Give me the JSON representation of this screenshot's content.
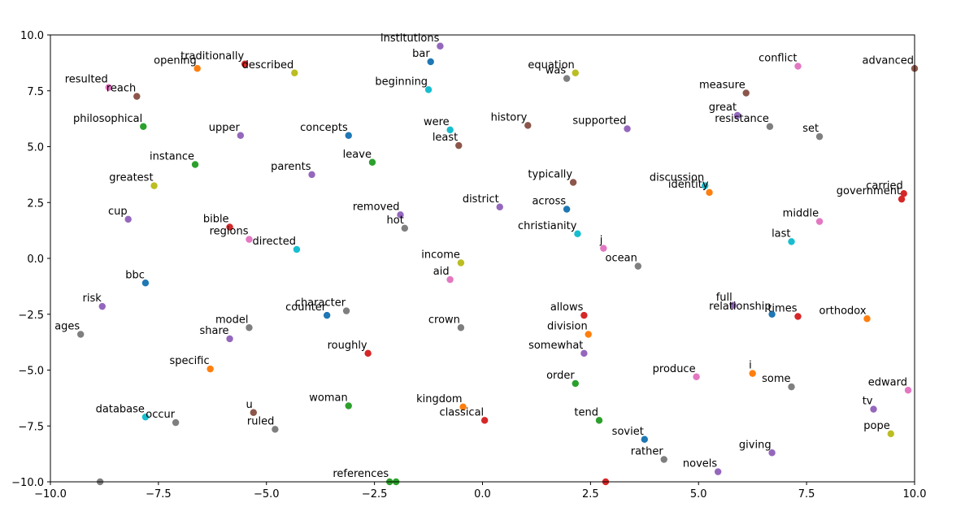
{
  "chart_data": {
    "type": "scatter",
    "title": "",
    "xlabel": "",
    "ylabel": "",
    "xlim": [
      -10,
      10
    ],
    "ylim": [
      -10,
      10
    ],
    "grid": false,
    "legend": "none",
    "x_ticks": [
      "−10.0",
      "−7.5",
      "−5.0",
      "−2.5",
      "0.0",
      "2.5",
      "5.0",
      "7.5",
      "10.0"
    ],
    "y_ticks": [
      "−10.0",
      "−7.5",
      "−5.0",
      "−2.5",
      "0.0",
      "2.5",
      "5.0",
      "7.5",
      "10.0"
    ],
    "x_tick_values": [
      -10,
      -7.5,
      -5,
      -2.5,
      0,
      2.5,
      5,
      7.5,
      10
    ],
    "y_tick_values": [
      -10,
      -7.5,
      -5,
      -2.5,
      0,
      2.5,
      5,
      7.5,
      10
    ],
    "points": [
      {
        "label": "institutions",
        "x": -0.98,
        "y": 9.5,
        "color": "#9467bd"
      },
      {
        "label": "bar",
        "x": -1.2,
        "y": 8.8,
        "color": "#1f77b4"
      },
      {
        "label": "traditionally",
        "x": -5.5,
        "y": 8.7,
        "color": "#d62728"
      },
      {
        "label": "opening",
        "x": -6.6,
        "y": 8.5,
        "color": "#ff7f0e"
      },
      {
        "label": "described",
        "x": -4.35,
        "y": 8.3,
        "color": "#bcbd22"
      },
      {
        "label": "resulted",
        "x": -8.65,
        "y": 7.65,
        "color": "#e377c2"
      },
      {
        "label": "reach",
        "x": -8.0,
        "y": 7.25,
        "color": "#8c564b"
      },
      {
        "label": "beginning",
        "x": -1.25,
        "y": 7.55,
        "color": "#17becf"
      },
      {
        "label": "equation",
        "x": 2.15,
        "y": 8.3,
        "color": "#bcbd22"
      },
      {
        "label": "was",
        "x": 1.95,
        "y": 8.05,
        "color": "#7f7f7f"
      },
      {
        "label": "conflict",
        "x": 7.3,
        "y": 8.6,
        "color": "#e377c2"
      },
      {
        "label": "advanced",
        "x": 10.0,
        "y": 8.5,
        "color": "#8c564b"
      },
      {
        "label": "measure",
        "x": 6.1,
        "y": 7.4,
        "color": "#8c564b"
      },
      {
        "label": "philosophical",
        "x": -7.85,
        "y": 5.9,
        "color": "#2ca02c"
      },
      {
        "label": "upper",
        "x": -5.6,
        "y": 5.5,
        "color": "#9467bd"
      },
      {
        "label": "concepts",
        "x": -3.1,
        "y": 5.5,
        "color": "#1f77b4"
      },
      {
        "label": "were",
        "x": -0.75,
        "y": 5.75,
        "color": "#17becf"
      },
      {
        "label": "least",
        "x": -0.55,
        "y": 5.05,
        "color": "#8c564b"
      },
      {
        "label": "history",
        "x": 1.05,
        "y": 5.95,
        "color": "#8c564b"
      },
      {
        "label": "supported",
        "x": 3.35,
        "y": 5.8,
        "color": "#9467bd"
      },
      {
        "label": "great",
        "x": 5.9,
        "y": 6.4,
        "color": "#9467bd"
      },
      {
        "label": "resistance",
        "x": 6.65,
        "y": 5.9,
        "color": "#7f7f7f"
      },
      {
        "label": "set",
        "x": 7.8,
        "y": 5.45,
        "color": "#7f7f7f"
      },
      {
        "label": "instance",
        "x": -6.65,
        "y": 4.2,
        "color": "#2ca02c"
      },
      {
        "label": "leave",
        "x": -2.55,
        "y": 4.3,
        "color": "#2ca02c"
      },
      {
        "label": "parents",
        "x": -3.95,
        "y": 3.75,
        "color": "#9467bd"
      },
      {
        "label": "greatest",
        "x": -7.6,
        "y": 3.25,
        "color": "#bcbd22"
      },
      {
        "label": "typically",
        "x": 2.1,
        "y": 3.4,
        "color": "#8c564b"
      },
      {
        "label": "discussion",
        "x": 5.15,
        "y": 3.25,
        "color": "#17becf"
      },
      {
        "label": "identity",
        "x": 5.25,
        "y": 2.95,
        "color": "#ff7f0e"
      },
      {
        "label": "carried",
        "x": 9.75,
        "y": 2.9,
        "color": "#d62728"
      },
      {
        "label": "government",
        "x": 9.7,
        "y": 2.65,
        "color": "#d62728"
      },
      {
        "label": "cup",
        "x": -8.2,
        "y": 1.75,
        "color": "#9467bd"
      },
      {
        "label": "bible",
        "x": -5.85,
        "y": 1.4,
        "color": "#d62728"
      },
      {
        "label": "regions",
        "x": -5.4,
        "y": 0.85,
        "color": "#e377c2"
      },
      {
        "label": "directed",
        "x": -4.3,
        "y": 0.4,
        "color": "#17becf"
      },
      {
        "label": "removed",
        "x": -1.9,
        "y": 1.95,
        "color": "#9467bd"
      },
      {
        "label": "hot",
        "x": -1.8,
        "y": 1.35,
        "color": "#7f7f7f"
      },
      {
        "label": "district",
        "x": 0.4,
        "y": 2.3,
        "color": "#9467bd"
      },
      {
        "label": "across",
        "x": 1.95,
        "y": 2.2,
        "color": "#1f77b4"
      },
      {
        "label": "christianity",
        "x": 2.2,
        "y": 1.1,
        "color": "#17becf"
      },
      {
        "label": "middle",
        "x": 7.8,
        "y": 1.65,
        "color": "#e377c2"
      },
      {
        "label": "last",
        "x": 7.15,
        "y": 0.75,
        "color": "#17becf"
      },
      {
        "label": "j",
        "x": 2.8,
        "y": 0.45,
        "color": "#e377c2"
      },
      {
        "label": "income",
        "x": -0.5,
        "y": -0.2,
        "color": "#bcbd22"
      },
      {
        "label": "ocean",
        "x": 3.6,
        "y": -0.35,
        "color": "#7f7f7f"
      },
      {
        "label": "aid",
        "x": -0.75,
        "y": -0.95,
        "color": "#e377c2"
      },
      {
        "label": "bbc",
        "x": -7.8,
        "y": -1.1,
        "color": "#1f77b4"
      },
      {
        "label": "risk",
        "x": -8.8,
        "y": -2.15,
        "color": "#9467bd"
      },
      {
        "label": "character",
        "x": -3.15,
        "y": -2.35,
        "color": "#7f7f7f"
      },
      {
        "label": "counter",
        "x": -3.6,
        "y": -2.55,
        "color": "#1f77b4"
      },
      {
        "label": "model",
        "x": -5.4,
        "y": -3.1,
        "color": "#7f7f7f"
      },
      {
        "label": "share",
        "x": -5.85,
        "y": -3.6,
        "color": "#9467bd"
      },
      {
        "label": "ages",
        "x": -9.3,
        "y": -3.4,
        "color": "#7f7f7f"
      },
      {
        "label": "crown",
        "x": -0.5,
        "y": -3.1,
        "color": "#7f7f7f"
      },
      {
        "label": "allows",
        "x": 2.35,
        "y": -2.55,
        "color": "#d62728"
      },
      {
        "label": "division",
        "x": 2.45,
        "y": -3.4,
        "color": "#ff7f0e"
      },
      {
        "label": "full",
        "x": 5.8,
        "y": -2.1,
        "color": "#9467bd"
      },
      {
        "label": "relationship",
        "x": 6.7,
        "y": -2.5,
        "color": "#1f77b4"
      },
      {
        "label": "times",
        "x": 7.3,
        "y": -2.6,
        "color": "#d62728"
      },
      {
        "label": "orthodox",
        "x": 8.9,
        "y": -2.7,
        "color": "#ff7f0e"
      },
      {
        "label": "roughly",
        "x": -2.65,
        "y": -4.25,
        "color": "#d62728"
      },
      {
        "label": "somewhat",
        "x": 2.35,
        "y": -4.25,
        "color": "#9467bd"
      },
      {
        "label": "specific",
        "x": -6.3,
        "y": -4.95,
        "color": "#ff7f0e"
      },
      {
        "label": "produce",
        "x": 4.95,
        "y": -5.3,
        "color": "#e377c2"
      },
      {
        "label": "i",
        "x": 6.25,
        "y": -5.15,
        "color": "#ff7f0e"
      },
      {
        "label": "order",
        "x": 2.15,
        "y": -5.6,
        "color": "#2ca02c"
      },
      {
        "label": "some",
        "x": 7.15,
        "y": -5.75,
        "color": "#7f7f7f"
      },
      {
        "label": "edward",
        "x": 9.85,
        "y": -5.9,
        "color": "#e377c2"
      },
      {
        "label": "woman",
        "x": -3.1,
        "y": -6.6,
        "color": "#2ca02c"
      },
      {
        "label": "kingdom",
        "x": -0.45,
        "y": -6.65,
        "color": "#ff7f0e"
      },
      {
        "label": "u",
        "x": -5.3,
        "y": -6.9,
        "color": "#8c564b"
      },
      {
        "label": "tv",
        "x": 9.05,
        "y": -6.75,
        "color": "#9467bd"
      },
      {
        "label": "database",
        "x": -7.8,
        "y": -7.1,
        "color": "#17becf"
      },
      {
        "label": "occur",
        "x": -7.1,
        "y": -7.35,
        "color": "#7f7f7f"
      },
      {
        "label": "ruled",
        "x": -4.8,
        "y": -7.65,
        "color": "#7f7f7f"
      },
      {
        "label": "classical",
        "x": 0.05,
        "y": -7.25,
        "color": "#d62728"
      },
      {
        "label": "tend",
        "x": 2.7,
        "y": -7.25,
        "color": "#2ca02c"
      },
      {
        "label": "pope",
        "x": 9.45,
        "y": -7.85,
        "color": "#bcbd22"
      },
      {
        "label": "soviet",
        "x": 3.75,
        "y": -8.1,
        "color": "#1f77b4"
      },
      {
        "label": "giving",
        "x": 6.7,
        "y": -8.7,
        "color": "#9467bd"
      },
      {
        "label": "rather",
        "x": 4.2,
        "y": -9.0,
        "color": "#7f7f7f"
      },
      {
        "label": "novels",
        "x": 5.45,
        "y": -9.55,
        "color": "#9467bd"
      },
      {
        "label": "references",
        "x": -2.15,
        "y": -10.0,
        "color": "#2ca02c"
      }
    ],
    "unlabeled_points": [
      {
        "x": -8.85,
        "y": -10.0,
        "color": "#7f7f7f"
      },
      {
        "x": -2.0,
        "y": -10.0,
        "color": "#2ca02c"
      },
      {
        "x": 2.85,
        "y": -10.0,
        "color": "#d62728"
      }
    ]
  }
}
